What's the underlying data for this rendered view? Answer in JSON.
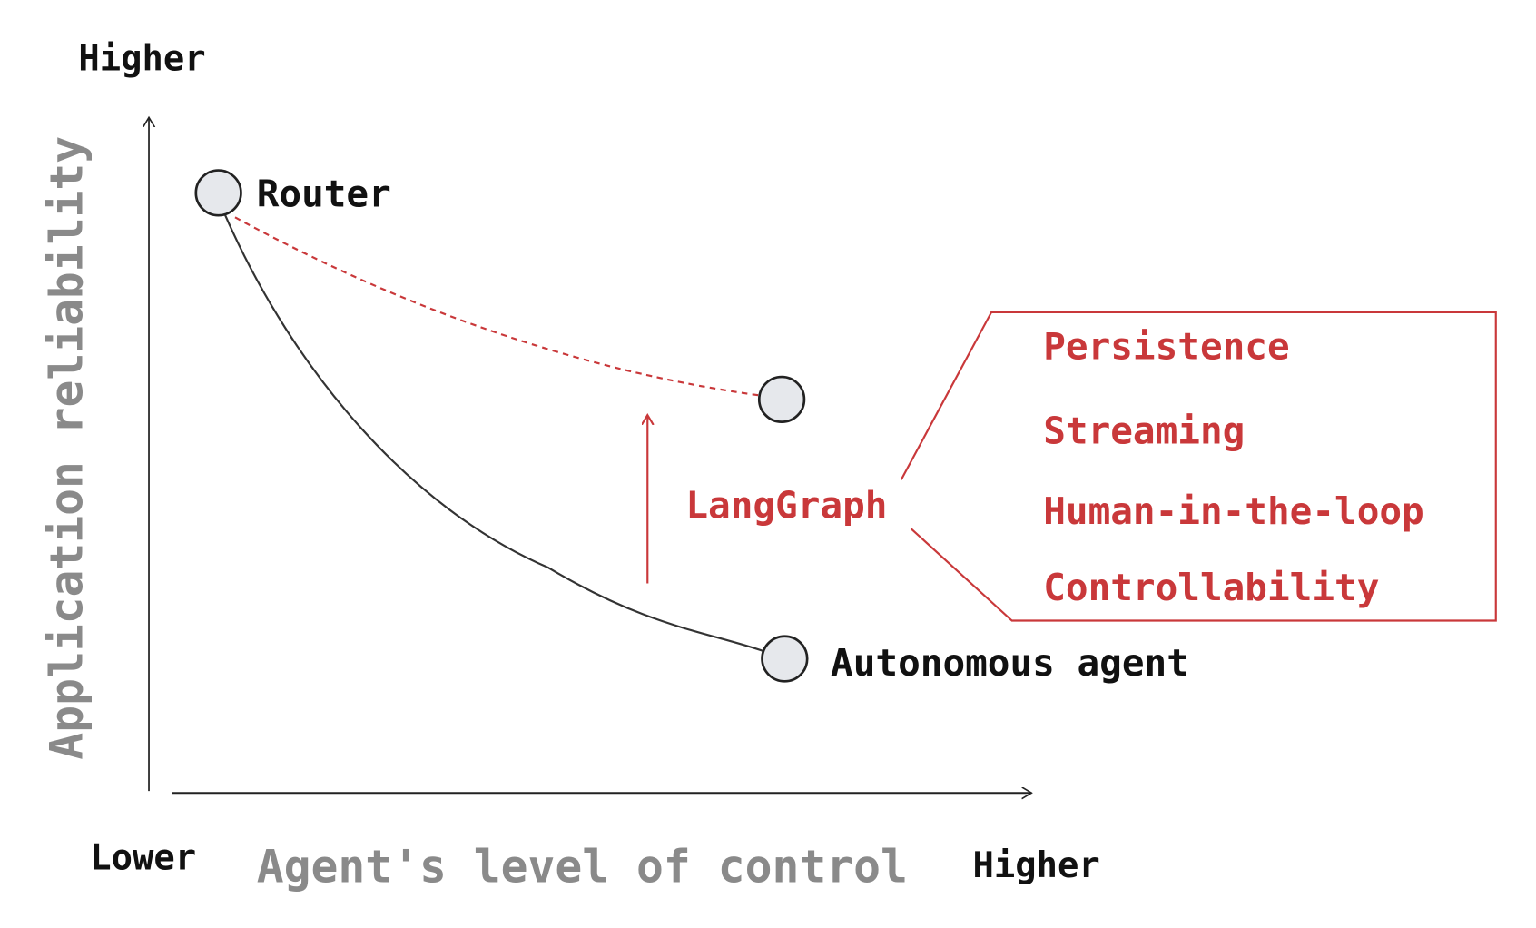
{
  "y_axis": {
    "title": "Application reliability",
    "top_label": "Higher"
  },
  "x_axis": {
    "title": "Agent's level of control",
    "left_label": "Lower",
    "right_label": "Higher"
  },
  "nodes": {
    "router": "Router",
    "autonomous": "Autonomous agent"
  },
  "langgraph": {
    "label": "LangGraph",
    "features": [
      "Persistence",
      "Streaming",
      "Human-in-the-loop",
      "Controllability"
    ]
  },
  "colors": {
    "accent": "#c9383a",
    "axis_title": "#8a8a8a",
    "text": "#111111",
    "node_fill": "#e6e8ec"
  }
}
